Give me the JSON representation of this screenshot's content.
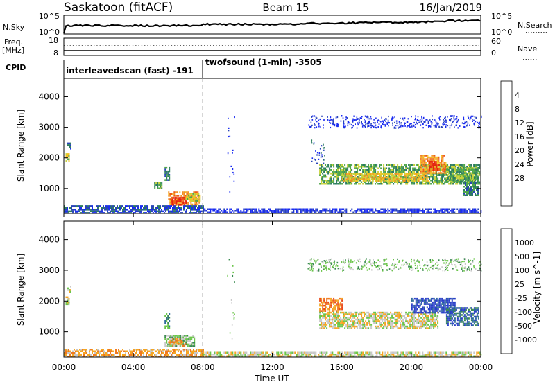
{
  "header": {
    "station": "Saskatoon (fitACF)",
    "beam": "Beam 15",
    "date": "16/Jan/2019"
  },
  "strip": {
    "nsky_label": "N.Sky",
    "nsky_ticks": [
      "10^5",
      "10^0"
    ],
    "nsearch_label": "N.Search",
    "nsearch_ticks": [
      "10^5",
      "10^0"
    ],
    "freq_label": "Freq.",
    "freq_unit": "[MHz]",
    "freq_ticks": [
      "18",
      "8"
    ],
    "nave_label": "Nave",
    "nave_ticks": [
      "60",
      "0"
    ],
    "cpid_label": "CPID",
    "modes": [
      {
        "name": "interleavedscan (fast) -191",
        "start_hour": 0
      },
      {
        "name": "twofsound (1-min) -3505",
        "start_hour": 8
      }
    ]
  },
  "time_axis": {
    "label": "Time UT",
    "ticks": [
      "00:00",
      "04:00",
      "08:00",
      "12:00",
      "16:00",
      "20:00",
      "00:00"
    ],
    "range_hours": [
      0,
      24
    ]
  },
  "chart_data": [
    {
      "type": "heatmap",
      "name": "power",
      "ylabel": "Slant Range [km]",
      "yticks": [
        "1000",
        "2000",
        "3000",
        "4000"
      ],
      "ylim": [
        180,
        4600
      ],
      "colorbar_label": "Power [dB]",
      "colorbar_ticks": [
        "4",
        "8",
        "12",
        "16",
        "20",
        "24",
        "28"
      ],
      "colorbar_colors": [
        "#1a2cf0",
        "#2844b8",
        "#2e7d60",
        "#4fa64a",
        "#c8d23a",
        "#f5c020",
        "#f29025",
        "#ee5a18",
        "#e62210"
      ],
      "regions": [
        {
          "x": [
            0.1,
            0.3
          ],
          "y": [
            1900,
            2150
          ],
          "level": 4
        },
        {
          "x": [
            0.2,
            0.4
          ],
          "y": [
            2300,
            2500
          ],
          "level": 1
        },
        {
          "x": [
            5.2,
            5.6
          ],
          "y": [
            1000,
            1200
          ],
          "level": 3
        },
        {
          "x": [
            5.8,
            6.1
          ],
          "y": [
            1300,
            1700
          ],
          "level": 2
        },
        {
          "x": [
            6.0,
            7.8
          ],
          "y": [
            450,
            900
          ],
          "level": 6
        },
        {
          "x": [
            6.2,
            7.0
          ],
          "y": [
            480,
            720
          ],
          "level": 8
        },
        {
          "x": [
            7.0,
            7.8
          ],
          "y": [
            600,
            850
          ],
          "level": 4
        },
        {
          "x": [
            14.7,
            23.9
          ],
          "y": [
            1150,
            1800
          ],
          "level": 3
        },
        {
          "x": [
            16.0,
            21.0
          ],
          "y": [
            1250,
            1500
          ],
          "level": 5
        },
        {
          "x": [
            20.5,
            22.0
          ],
          "y": [
            1500,
            2100
          ],
          "level": 6
        },
        {
          "x": [
            21.0,
            21.6
          ],
          "y": [
            1600,
            1900
          ],
          "level": 8
        },
        {
          "x": [
            22.0,
            23.9
          ],
          "y": [
            1200,
            1700
          ],
          "level": 3
        },
        {
          "x": [
            23.0,
            23.8
          ],
          "y": [
            800,
            1200
          ],
          "level": 2
        },
        {
          "x": [
            0.0,
            8.0
          ],
          "y": [
            200,
            450
          ],
          "level": 1
        },
        {
          "x": [
            8.0,
            24.0
          ],
          "y": [
            200,
            350
          ],
          "level": 0
        }
      ],
      "scatter": [
        {
          "x": [
            9.4,
            9.8
          ],
          "y": [
            700,
            3400
          ],
          "level": 0
        },
        {
          "x": [
            14.0,
            24.0
          ],
          "y": [
            3000,
            3400
          ],
          "level": 0
        },
        {
          "x": [
            14.2,
            15.0
          ],
          "y": [
            1800,
            2600
          ],
          "level": 1
        }
      ]
    },
    {
      "type": "heatmap",
      "name": "velocity",
      "ylabel": "Slant Range [km]",
      "yticks": [
        "1000",
        "2000",
        "3000",
        "4000"
      ],
      "ylim": [
        180,
        4600
      ],
      "colorbar_label": "Velocity [m s^-1]",
      "colorbar_ticks": [
        "1000",
        "500",
        "100",
        "25",
        "-25",
        "-100",
        "-500",
        "-1000"
      ],
      "colorbar_colors": [
        "#2a40c8",
        "#2e6a9a",
        "#3a8a50",
        "#6bc54a",
        "#c8c8c8",
        "#f5a623",
        "#f07a20",
        "#ea4a1a",
        "#e01818"
      ],
      "regions": [
        {
          "x": [
            0.1,
            0.3
          ],
          "y": [
            1900,
            2150
          ],
          "level": 4
        },
        {
          "x": [
            0.2,
            0.4
          ],
          "y": [
            2300,
            2500
          ],
          "level": 4
        },
        {
          "x": [
            5.8,
            6.1
          ],
          "y": [
            1100,
            1600
          ],
          "level": 2
        },
        {
          "x": [
            5.8,
            7.5
          ],
          "y": [
            550,
            900
          ],
          "level": 3
        },
        {
          "x": [
            6.0,
            7.0
          ],
          "y": [
            550,
            800
          ],
          "level": 5
        },
        {
          "x": [
            14.7,
            16.0
          ],
          "y": [
            1700,
            2100
          ],
          "level": 6
        },
        {
          "x": [
            14.7,
            21.5
          ],
          "y": [
            1100,
            1650
          ],
          "level": 4
        },
        {
          "x": [
            20.0,
            22.5
          ],
          "y": [
            1600,
            2100
          ],
          "level": 0
        },
        {
          "x": [
            22.0,
            23.9
          ],
          "y": [
            1200,
            1800
          ],
          "level": 1
        },
        {
          "x": [
            0.0,
            8.0
          ],
          "y": [
            200,
            450
          ],
          "level": 5
        },
        {
          "x": [
            8.0,
            24.0
          ],
          "y": [
            200,
            350
          ],
          "level": 4
        }
      ],
      "scatter": [
        {
          "x": [
            9.4,
            9.8
          ],
          "y": [
            700,
            3400
          ],
          "level": 3
        },
        {
          "x": [
            14.0,
            24.0
          ],
          "y": [
            3000,
            3400
          ],
          "level": 3
        }
      ]
    }
  ]
}
